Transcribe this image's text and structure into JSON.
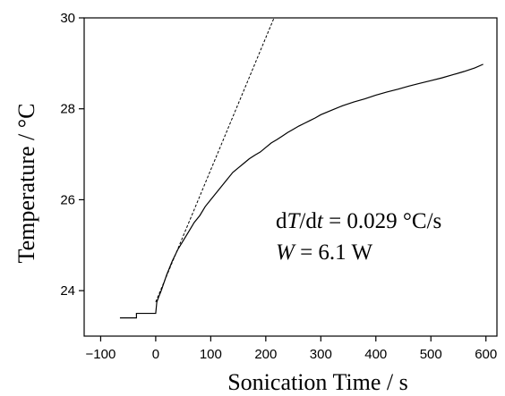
{
  "chart_data": {
    "type": "line",
    "xlabel": "Sonication Time / s",
    "ylabel": "Temperature / °C",
    "xlim": [
      -130,
      620
    ],
    "ylim": [
      23,
      30
    ],
    "xticks": [
      -100,
      0,
      100,
      200,
      300,
      400,
      500,
      600
    ],
    "xtick_labels": [
      "−100",
      "0",
      "100",
      "200",
      "300",
      "400",
      "500",
      "600"
    ],
    "yticks": [
      24,
      26,
      28,
      30
    ],
    "ytick_labels": [
      "24",
      "26",
      "28",
      "30"
    ],
    "grid": false,
    "series": [
      {
        "style": "solid",
        "x": [
          -65,
          -35,
          -35,
          0,
          2,
          5,
          10,
          20,
          30,
          40,
          50,
          60,
          70,
          80,
          90,
          100,
          110,
          120,
          130,
          140,
          150,
          160,
          170,
          180,
          190,
          200,
          210,
          220,
          230,
          240,
          250,
          260,
          270,
          280,
          290,
          300,
          320,
          340,
          360,
          380,
          400,
          420,
          440,
          460,
          480,
          500,
          520,
          540,
          560,
          580,
          595
        ],
        "y": [
          23.4,
          23.4,
          23.5,
          23.5,
          23.75,
          23.85,
          24.0,
          24.35,
          24.65,
          24.9,
          25.1,
          25.3,
          25.5,
          25.65,
          25.85,
          26.0,
          26.15,
          26.3,
          26.45,
          26.6,
          26.7,
          26.8,
          26.9,
          26.98,
          27.05,
          27.15,
          27.25,
          27.32,
          27.4,
          27.48,
          27.55,
          27.62,
          27.68,
          27.74,
          27.8,
          27.87,
          27.97,
          28.07,
          28.15,
          28.22,
          28.3,
          28.37,
          28.43,
          28.5,
          28.56,
          28.62,
          28.68,
          28.75,
          28.82,
          28.9,
          28.98
        ]
      },
      {
        "style": "dashed",
        "x": [
          0,
          215
        ],
        "y": [
          23.75,
          30.0
        ]
      }
    ],
    "annotations": [
      {
        "italic_parts": [
          "d",
          "T",
          "/d",
          "t",
          " = 0.029 °C/s"
        ]
      },
      {
        "italic_parts": [
          "W",
          " = 6.1 W"
        ]
      }
    ]
  }
}
